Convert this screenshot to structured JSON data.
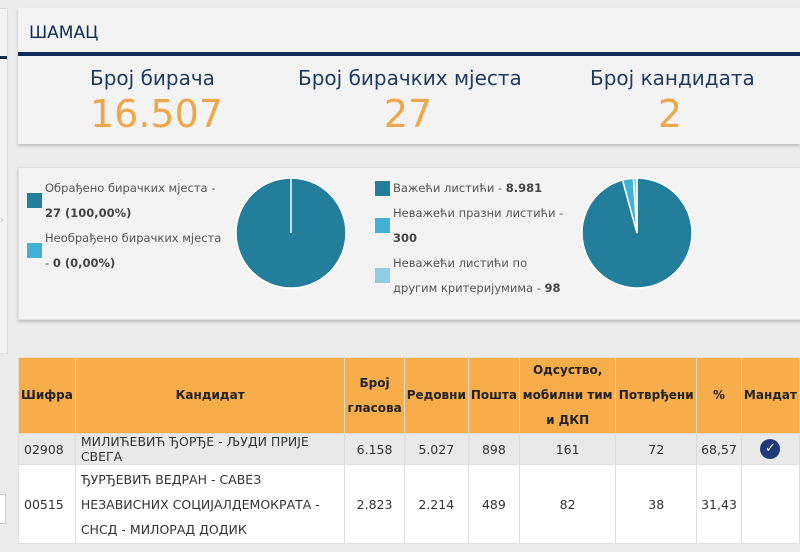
{
  "header": {
    "title": "ШАМАЦ",
    "stats": [
      {
        "label": "Број бирача",
        "value": "16.507"
      },
      {
        "label": "Број бирачких мјеста",
        "value": "27"
      },
      {
        "label": "Број кандидата",
        "value": "2"
      }
    ]
  },
  "colors": {
    "primary_teal": "#237e9b",
    "light_blue": "#43b1d6",
    "pale_blue": "#8fcfe6",
    "navy": "#0f2b55",
    "orange": "#f0a64a",
    "table_header": "#f6ad4a"
  },
  "polling_stations": {
    "legend": [
      {
        "label": "Обрађено бирачких мјеста - ",
        "value": "27 (100,00%)",
        "color": "#237e9b"
      },
      {
        "label": "Необрађено бирачких мјеста - ",
        "value": "0 (0,00%)",
        "color": "#43b1d6"
      }
    ]
  },
  "ballots": {
    "legend": [
      {
        "label": "Важећи листићи - ",
        "value": "8.981",
        "color": "#237e9b"
      },
      {
        "label": "Неважећи празни листићи - ",
        "value": "300",
        "color": "#43b1d6"
      },
      {
        "label": "Неважећи листићи по другим критеријумима - ",
        "value": "98",
        "color": "#8fcfe6"
      }
    ]
  },
  "chart_data": [
    {
      "type": "pie",
      "title": "Обрађено бирачких мјеста",
      "labels": [
        "Обрађено бирачких мјеста",
        "Необрађено бирачких мјеста"
      ],
      "values": [
        27,
        0
      ],
      "colors": [
        "#237e9b",
        "#43b1d6"
      ]
    },
    {
      "type": "pie",
      "title": "Листићи",
      "labels": [
        "Важећи листићи",
        "Неважећи празни листићи",
        "Неважећи листићи по другим критеријумима"
      ],
      "values": [
        8981,
        300,
        98
      ],
      "colors": [
        "#237e9b",
        "#43b1d6",
        "#8fcfe6"
      ]
    }
  ],
  "table": {
    "headers": {
      "code": "Шифра",
      "candidate": "Кандидат",
      "votes_1": "Број",
      "votes_2": "гласова",
      "regular": "Редовни",
      "mail": "Пошта",
      "absent_1": "Одсуство,",
      "absent_2": "мобилни тим",
      "absent_3": "и ДКП",
      "confirmed": "Потврђени",
      "percent": "%",
      "mandate": "Мандат"
    },
    "rows": [
      {
        "code": "02908",
        "candidate": "МИЛИЋЕВИЋ ЂОРЂЕ - ЉУДИ ПРИЈЕ СВЕГА",
        "votes": "6.158",
        "regular": "5.027",
        "mail": "898",
        "absent": "161",
        "confirmed": "72",
        "percent": "68,57",
        "mandate": true
      },
      {
        "code": "00515",
        "candidate": "ЂУРЂЕВИЋ ВЕДРАН - САВЕЗ НЕЗАВИСНИХ СОЦИЈАЛДЕМОКРАТА - СНСД - МИЛОРАД ДОДИК",
        "votes": "2.823",
        "regular": "2.214",
        "mail": "489",
        "absent": "82",
        "confirmed": "38",
        "percent": "31,43",
        "mandate": false
      }
    ]
  }
}
